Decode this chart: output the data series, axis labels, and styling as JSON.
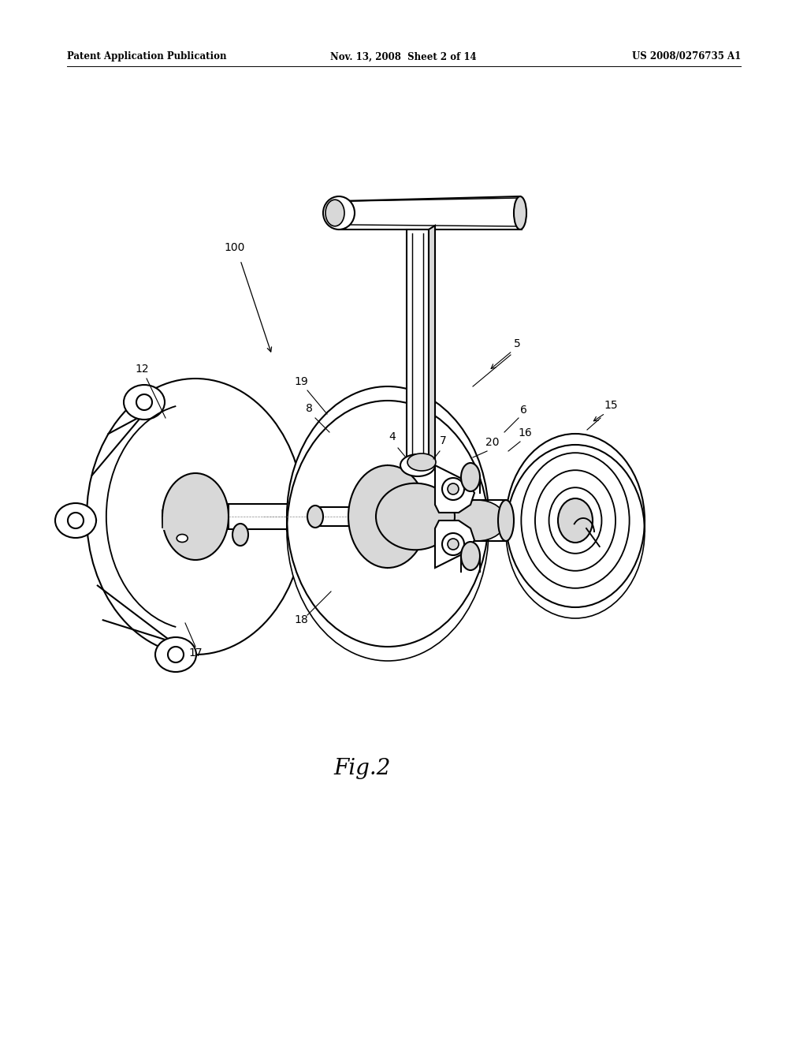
{
  "background_color": "#ffffff",
  "header_left": "Patent Application Publication",
  "header_center": "Nov. 13, 2008  Sheet 2 of 14",
  "header_right": "US 2008/0276735 A1",
  "figure_label": "Fig.2",
  "line_color": "#000000",
  "line_width": 1.5,
  "text_color": "#000000",
  "shade_color": "#d8d8d8",
  "shade_dark": "#b0b0b0"
}
